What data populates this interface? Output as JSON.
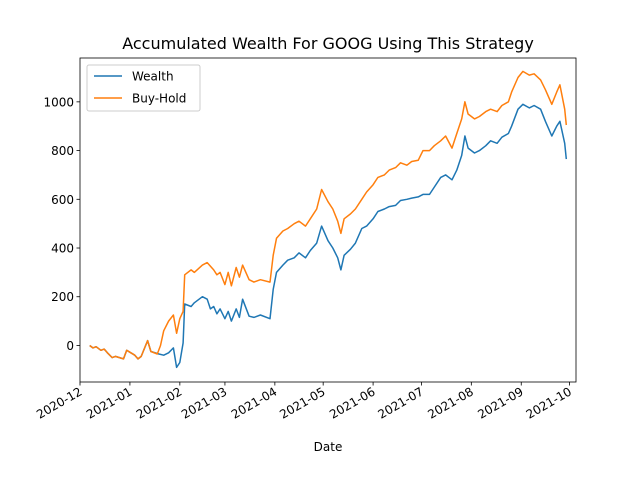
{
  "chart_data": {
    "type": "line",
    "title": "Accumulated Wealth For GOOG Using This Strategy",
    "xlabel": "Date",
    "ylabel": "",
    "grid": false,
    "legend_position": "top-left",
    "xlim": [
      "2020-12-01",
      "2021-10-05"
    ],
    "ylim": [
      -150,
      1180
    ],
    "x_ticks": [
      "2020-12",
      "2021-01",
      "2021-02",
      "2021-03",
      "2021-04",
      "2021-05",
      "2021-06",
      "2021-07",
      "2021-08",
      "2021-09",
      "2021-10"
    ],
    "y_ticks": [
      0,
      200,
      400,
      600,
      800,
      1000
    ],
    "series": [
      {
        "name": "Wealth",
        "color": "#1f77b4",
        "points": [
          [
            "2020-12-07",
            0
          ],
          [
            "2020-12-09",
            -10
          ],
          [
            "2020-12-11",
            -5
          ],
          [
            "2020-12-14",
            -20
          ],
          [
            "2020-12-16",
            -15
          ],
          [
            "2020-12-18",
            -30
          ],
          [
            "2020-12-21",
            -50
          ],
          [
            "2020-12-23",
            -45
          ],
          [
            "2020-12-28",
            -55
          ],
          [
            "2020-12-30",
            -20
          ],
          [
            "2021-01-04",
            -40
          ],
          [
            "2021-01-06",
            -55
          ],
          [
            "2021-01-08",
            -45
          ],
          [
            "2021-01-12",
            20
          ],
          [
            "2021-01-14",
            -25
          ],
          [
            "2021-01-19",
            -35
          ],
          [
            "2021-01-22",
            -40
          ],
          [
            "2021-01-25",
            -30
          ],
          [
            "2021-01-28",
            -10
          ],
          [
            "2021-01-30",
            -90
          ],
          [
            "2021-02-01",
            -70
          ],
          [
            "2021-02-03",
            10
          ],
          [
            "2021-02-04",
            170
          ],
          [
            "2021-02-08",
            160
          ],
          [
            "2021-02-10",
            175
          ],
          [
            "2021-02-15",
            200
          ],
          [
            "2021-02-18",
            190
          ],
          [
            "2021-02-20",
            150
          ],
          [
            "2021-02-22",
            160
          ],
          [
            "2021-02-24",
            130
          ],
          [
            "2021-02-26",
            150
          ],
          [
            "2021-03-01",
            110
          ],
          [
            "2021-03-03",
            140
          ],
          [
            "2021-03-05",
            100
          ],
          [
            "2021-03-08",
            150
          ],
          [
            "2021-03-10",
            115
          ],
          [
            "2021-03-12",
            190
          ],
          [
            "2021-03-16",
            120
          ],
          [
            "2021-03-19",
            115
          ],
          [
            "2021-03-23",
            125
          ],
          [
            "2021-03-29",
            110
          ],
          [
            "2021-03-31",
            230
          ],
          [
            "2021-04-02",
            300
          ],
          [
            "2021-04-06",
            330
          ],
          [
            "2021-04-09",
            350
          ],
          [
            "2021-04-13",
            360
          ],
          [
            "2021-04-16",
            380
          ],
          [
            "2021-04-20",
            360
          ],
          [
            "2021-04-23",
            390
          ],
          [
            "2021-04-27",
            420
          ],
          [
            "2021-04-30",
            490
          ],
          [
            "2021-05-04",
            430
          ],
          [
            "2021-05-07",
            400
          ],
          [
            "2021-05-10",
            360
          ],
          [
            "2021-05-12",
            310
          ],
          [
            "2021-05-14",
            370
          ],
          [
            "2021-05-18",
            395
          ],
          [
            "2021-05-21",
            420
          ],
          [
            "2021-05-25",
            480
          ],
          [
            "2021-05-28",
            490
          ],
          [
            "2021-06-01",
            520
          ],
          [
            "2021-06-04",
            550
          ],
          [
            "2021-06-08",
            560
          ],
          [
            "2021-06-11",
            570
          ],
          [
            "2021-06-15",
            575
          ],
          [
            "2021-06-18",
            595
          ],
          [
            "2021-06-22",
            600
          ],
          [
            "2021-06-25",
            605
          ],
          [
            "2021-06-29",
            610
          ],
          [
            "2021-07-02",
            620
          ],
          [
            "2021-07-06",
            620
          ],
          [
            "2021-07-09",
            650
          ],
          [
            "2021-07-13",
            690
          ],
          [
            "2021-07-16",
            700
          ],
          [
            "2021-07-20",
            680
          ],
          [
            "2021-07-23",
            720
          ],
          [
            "2021-07-26",
            780
          ],
          [
            "2021-07-28",
            860
          ],
          [
            "2021-07-30",
            810
          ],
          [
            "2021-08-03",
            790
          ],
          [
            "2021-08-06",
            800
          ],
          [
            "2021-08-10",
            820
          ],
          [
            "2021-08-13",
            840
          ],
          [
            "2021-08-17",
            830
          ],
          [
            "2021-08-20",
            855
          ],
          [
            "2021-08-24",
            870
          ],
          [
            "2021-08-26",
            900
          ],
          [
            "2021-08-30",
            970
          ],
          [
            "2021-09-02",
            990
          ],
          [
            "2021-09-06",
            975
          ],
          [
            "2021-09-09",
            985
          ],
          [
            "2021-09-13",
            970
          ],
          [
            "2021-09-16",
            920
          ],
          [
            "2021-09-20",
            860
          ],
          [
            "2021-09-23",
            900
          ],
          [
            "2021-09-25",
            920
          ],
          [
            "2021-09-28",
            830
          ],
          [
            "2021-09-29",
            765
          ]
        ]
      },
      {
        "name": "Buy-Hold",
        "color": "#ff7f0e",
        "points": [
          [
            "2020-12-07",
            0
          ],
          [
            "2020-12-09",
            -10
          ],
          [
            "2020-12-11",
            -5
          ],
          [
            "2020-12-14",
            -20
          ],
          [
            "2020-12-16",
            -15
          ],
          [
            "2020-12-18",
            -30
          ],
          [
            "2020-12-21",
            -50
          ],
          [
            "2020-12-23",
            -45
          ],
          [
            "2020-12-28",
            -55
          ],
          [
            "2020-12-30",
            -20
          ],
          [
            "2021-01-04",
            -40
          ],
          [
            "2021-01-06",
            -55
          ],
          [
            "2021-01-08",
            -45
          ],
          [
            "2021-01-12",
            20
          ],
          [
            "2021-01-14",
            -25
          ],
          [
            "2021-01-18",
            -35
          ],
          [
            "2021-01-20",
            0
          ],
          [
            "2021-01-22",
            60
          ],
          [
            "2021-01-25",
            100
          ],
          [
            "2021-01-28",
            125
          ],
          [
            "2021-01-30",
            50
          ],
          [
            "2021-02-01",
            110
          ],
          [
            "2021-02-03",
            140
          ],
          [
            "2021-02-04",
            290
          ],
          [
            "2021-02-08",
            310
          ],
          [
            "2021-02-10",
            300
          ],
          [
            "2021-02-15",
            330
          ],
          [
            "2021-02-18",
            340
          ],
          [
            "2021-02-22",
            310
          ],
          [
            "2021-02-24",
            290
          ],
          [
            "2021-02-26",
            300
          ],
          [
            "2021-03-01",
            250
          ],
          [
            "2021-03-03",
            300
          ],
          [
            "2021-03-05",
            245
          ],
          [
            "2021-03-08",
            320
          ],
          [
            "2021-03-10",
            280
          ],
          [
            "2021-03-12",
            330
          ],
          [
            "2021-03-16",
            270
          ],
          [
            "2021-03-19",
            260
          ],
          [
            "2021-03-23",
            270
          ],
          [
            "2021-03-29",
            260
          ],
          [
            "2021-03-31",
            370
          ],
          [
            "2021-04-02",
            440
          ],
          [
            "2021-04-06",
            470
          ],
          [
            "2021-04-09",
            480
          ],
          [
            "2021-04-13",
            500
          ],
          [
            "2021-04-16",
            510
          ],
          [
            "2021-04-20",
            490
          ],
          [
            "2021-04-23",
            520
          ],
          [
            "2021-04-27",
            560
          ],
          [
            "2021-04-30",
            640
          ],
          [
            "2021-05-04",
            590
          ],
          [
            "2021-05-07",
            560
          ],
          [
            "2021-05-10",
            510
          ],
          [
            "2021-05-12",
            460
          ],
          [
            "2021-05-14",
            520
          ],
          [
            "2021-05-18",
            540
          ],
          [
            "2021-05-21",
            560
          ],
          [
            "2021-05-25",
            600
          ],
          [
            "2021-05-28",
            630
          ],
          [
            "2021-06-01",
            660
          ],
          [
            "2021-06-04",
            690
          ],
          [
            "2021-06-08",
            700
          ],
          [
            "2021-06-11",
            720
          ],
          [
            "2021-06-15",
            730
          ],
          [
            "2021-06-18",
            750
          ],
          [
            "2021-06-22",
            740
          ],
          [
            "2021-06-25",
            755
          ],
          [
            "2021-06-29",
            760
          ],
          [
            "2021-07-02",
            800
          ],
          [
            "2021-07-06",
            800
          ],
          [
            "2021-07-09",
            820
          ],
          [
            "2021-07-13",
            840
          ],
          [
            "2021-07-16",
            860
          ],
          [
            "2021-07-20",
            810
          ],
          [
            "2021-07-23",
            870
          ],
          [
            "2021-07-26",
            930
          ],
          [
            "2021-07-28",
            1000
          ],
          [
            "2021-07-30",
            950
          ],
          [
            "2021-08-03",
            930
          ],
          [
            "2021-08-06",
            940
          ],
          [
            "2021-08-10",
            960
          ],
          [
            "2021-08-13",
            970
          ],
          [
            "2021-08-17",
            960
          ],
          [
            "2021-08-20",
            985
          ],
          [
            "2021-08-24",
            1000
          ],
          [
            "2021-08-26",
            1040
          ],
          [
            "2021-08-30",
            1100
          ],
          [
            "2021-09-02",
            1125
          ],
          [
            "2021-09-06",
            1110
          ],
          [
            "2021-09-09",
            1115
          ],
          [
            "2021-09-13",
            1090
          ],
          [
            "2021-09-16",
            1050
          ],
          [
            "2021-09-20",
            990
          ],
          [
            "2021-09-23",
            1040
          ],
          [
            "2021-09-25",
            1070
          ],
          [
            "2021-09-28",
            970
          ],
          [
            "2021-09-29",
            905
          ]
        ]
      }
    ]
  }
}
